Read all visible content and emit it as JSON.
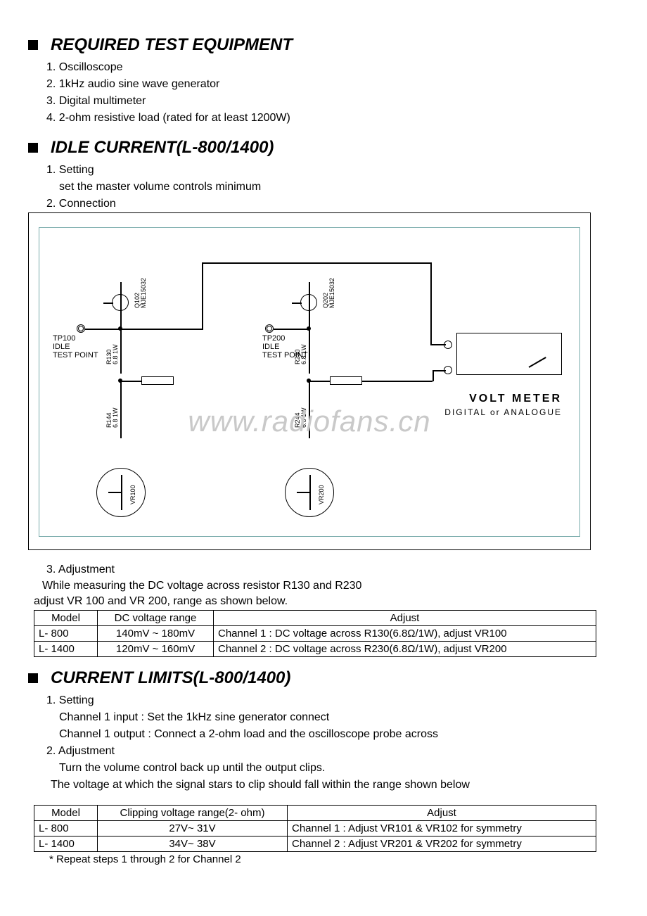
{
  "sections": {
    "equipment": {
      "title": "REQUIRED TEST EQUIPMENT",
      "items": [
        "1. Oscilloscope",
        "2. 1kHz audio sine wave generator",
        "3. Digital multimeter",
        "4. 2-ohm resistive load (rated for at least 1200W)"
      ]
    },
    "idle": {
      "title": "IDLE CURRENT(L-800/1400)",
      "steps": {
        "s1": "1. Setting",
        "s1a": "set the master volume controls minimum",
        "s2": "2. Connection",
        "s3": "3. Adjustment"
      },
      "adj_text_1": "While measuring the DC voltage across resistor R130 and  R230",
      "adj_text_2": " adjust VR 100 and VR 200, range  as shown below."
    },
    "limits": {
      "title": "CURRENT LIMITS(L-800/1400)",
      "steps": {
        "s1": "1. Setting",
        "s1a": "Channel 1 input : Set the 1kHz  sine generator connect",
        "s1b": "Channel 1 output : Connect a 2-ohm load and the oscilloscope probe across",
        "s2": "2. Adjustment",
        "s2a": " Turn the volume control back up until the output clips.",
        "s2b": "The voltage at which the signal stars to clip should fall within the range shown below"
      },
      "note": "* Repeat steps 1 through 2 for Channel 2"
    }
  },
  "diagram": {
    "watermark": "www.radiofans.cn",
    "vmeter_title": "VOLT  METER",
    "vmeter_sub": "DIGITAL or ANALOGUE",
    "tp100": "TP100\nIDLE\nTEST POINT",
    "tp200": "TP200\nIDLE\nTEST POINT",
    "q102": "Q102\nMJE15032",
    "q202": "Q202\nMJE15032",
    "r130": "R130\n6.8 1W",
    "r230": "R230\n6.8 1W",
    "r144": "R144\n6.8 1W",
    "r244": "R244\n6.8 1W",
    "vr100": "VR100",
    "vr200": "VR200"
  },
  "table_idle": {
    "columns": [
      "Model",
      "DC voltage range",
      "Adjust"
    ],
    "col_widths": [
      "90px",
      "165px",
      "auto"
    ],
    "rows": [
      [
        "L- 800",
        "140mV ~ 180mV",
        "Channel 1 : DC voltage across R130(6.8Ω/1W), adjust VR100"
      ],
      [
        "L- 1400",
        "120mV ~ 160mV",
        "Channel 2 : DC voltage across R230(6.8Ω/1W), adjust VR200"
      ]
    ]
  },
  "table_limits": {
    "columns": [
      "Model",
      "Clipping voltage range(2- ohm)",
      "Adjust"
    ],
    "col_widths": [
      "90px",
      "270px",
      "auto"
    ],
    "rows": [
      [
        "L- 800",
        "27V~ 31V",
        "Channel 1 : Adjust VR101 & VR102 for symmetry"
      ],
      [
        "L- 1400",
        "34V~ 38V",
        "Channel 2 : Adjust VR201 & VR202 for symmetry"
      ]
    ]
  },
  "colors": {
    "fg": "#000000",
    "bg": "#ffffff",
    "watermark": "#c9c9c9",
    "frame": "#7aa"
  }
}
